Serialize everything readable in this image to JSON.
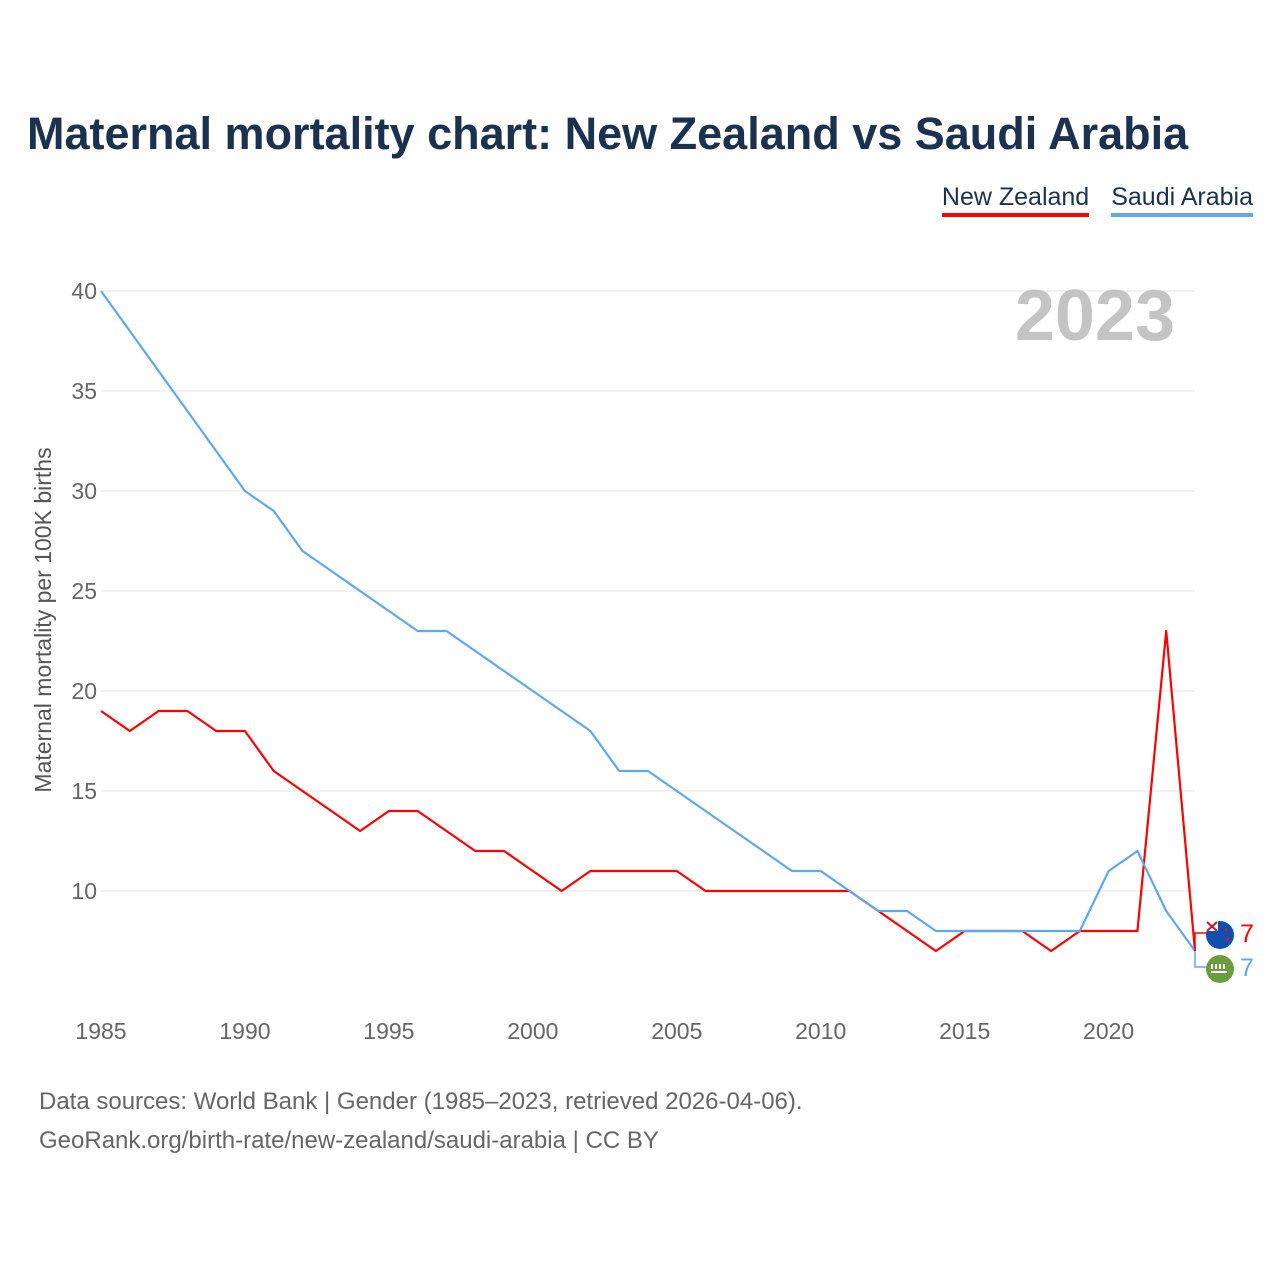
{
  "title": "Maternal mortality chart: New Zealand vs Saudi Arabia",
  "year_watermark": "2023",
  "footer": {
    "line1": "Data sources: World Bank | Gender (1985–2023, retrieved 2026-04-06).",
    "line2": "GeoRank.org/birth-rate/new-zealand/saudi-arabia | CC BY"
  },
  "chart_data": {
    "type": "line",
    "title": "Maternal mortality chart: New Zealand vs Saudi Arabia",
    "xlabel": "",
    "ylabel": "Maternal mortality per 100K births",
    "xlim": [
      1985,
      2023
    ],
    "ylim": [
      5,
      40
    ],
    "yticks": [
      10,
      15,
      20,
      25,
      30,
      35,
      40
    ],
    "xticks": [
      1985,
      1990,
      1995,
      2000,
      2005,
      2010,
      2015,
      2020
    ],
    "grid": true,
    "legend_position": "top-right",
    "x": [
      1985,
      1986,
      1987,
      1988,
      1989,
      1990,
      1991,
      1992,
      1993,
      1994,
      1995,
      1996,
      1997,
      1998,
      1999,
      2000,
      2001,
      2002,
      2003,
      2004,
      2005,
      2006,
      2007,
      2008,
      2009,
      2010,
      2011,
      2012,
      2013,
      2014,
      2015,
      2016,
      2017,
      2018,
      2019,
      2020,
      2021,
      2022,
      2023
    ],
    "series": [
      {
        "name": "New Zealand",
        "color": "#ff0000",
        "end_label": "7",
        "flag": "new-zealand-flag-icon",
        "values": [
          19,
          18,
          19,
          19,
          18,
          18,
          16,
          15,
          14,
          13,
          14,
          14,
          13,
          12,
          12,
          11,
          10,
          11,
          11,
          11,
          11,
          10,
          10,
          10,
          10,
          10,
          10,
          9,
          8,
          7,
          8,
          8,
          8,
          7,
          8,
          8,
          8,
          23,
          7
        ]
      },
      {
        "name": "Saudi Arabia",
        "color": "#5ea8ee",
        "end_label": "7",
        "flag": "saudi-arabia-flag-icon",
        "values": [
          40,
          38,
          36,
          34,
          32,
          30,
          29,
          27,
          26,
          25,
          24,
          23,
          23,
          22,
          21,
          20,
          19,
          18,
          16,
          16,
          15,
          14,
          13,
          12,
          11,
          11,
          10,
          9,
          9,
          8,
          8,
          8,
          8,
          8,
          8,
          11,
          12,
          9,
          7
        ]
      }
    ]
  }
}
